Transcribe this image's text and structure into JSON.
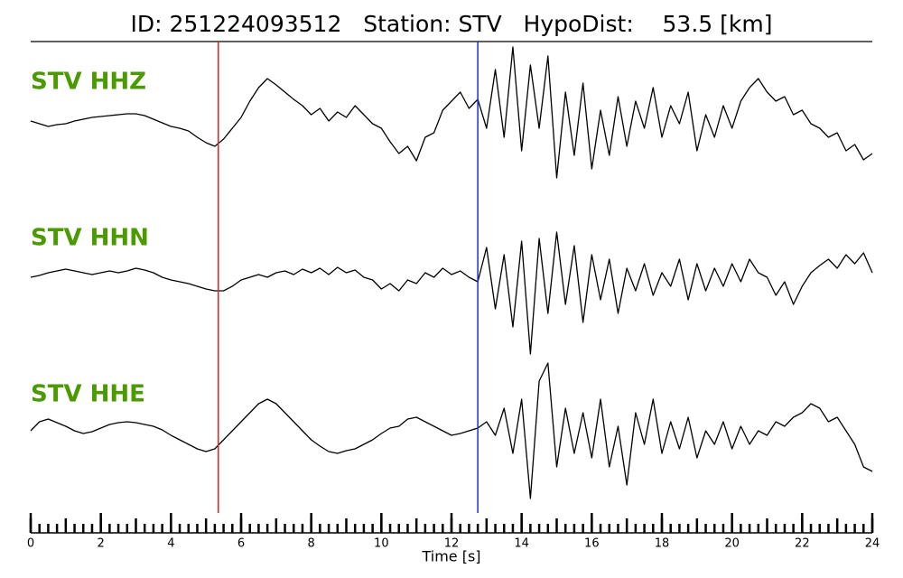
{
  "chart_data": {
    "type": "seismogram",
    "title": "ID: 251224093512   Station: STV   HypoDist:    53.5 [km]",
    "xlabel": "Time [s]",
    "xlim": [
      0,
      24
    ],
    "xticks": [
      0,
      2,
      4,
      6,
      8,
      10,
      12,
      14,
      16,
      18,
      20,
      22,
      24
    ],
    "xminorticks": [
      0,
      0.25,
      0.5,
      0.75,
      1,
      1.25,
      1.5,
      1.75,
      2,
      2.25,
      2.5,
      2.75,
      3,
      3.25,
      3.5,
      3.75,
      4,
      4.25,
      4.5,
      4.75,
      5,
      5.25,
      5.5,
      5.75,
      6,
      6.25,
      6.5,
      6.75,
      7,
      7.25,
      7.5,
      7.75,
      8,
      8.25,
      8.5,
      8.75,
      9,
      9.25,
      9.5,
      9.75,
      10,
      10.25,
      10.5,
      10.75,
      11,
      11.25,
      11.5,
      11.75,
      12,
      12.25,
      12.5,
      12.75,
      13,
      13.25,
      13.5,
      13.75,
      14,
      14.25,
      14.5,
      14.75,
      15,
      15.25,
      15.5,
      15.75,
      16,
      16.25,
      16.5,
      16.75,
      17,
      17.25,
      17.5,
      17.75,
      18,
      18.25,
      18.5,
      18.75,
      19,
      19.25,
      19.5,
      19.75,
      20,
      20.25,
      20.5,
      20.75,
      21,
      21.25,
      21.5,
      21.75,
      22,
      22.25,
      22.5,
      22.75,
      23,
      23.25,
      23.5,
      23.75,
      24
    ],
    "x": [
      0,
      0.25,
      0.5,
      0.75,
      1,
      1.25,
      1.5,
      1.75,
      2,
      2.25,
      2.5,
      2.75,
      3,
      3.25,
      3.5,
      3.75,
      4,
      4.25,
      4.5,
      4.75,
      5,
      5.25,
      5.5,
      5.75,
      6,
      6.25,
      6.5,
      6.75,
      7,
      7.25,
      7.5,
      7.75,
      8,
      8.25,
      8.5,
      8.75,
      9,
      9.25,
      9.5,
      9.75,
      10,
      10.25,
      10.5,
      10.75,
      11,
      11.25,
      11.5,
      11.75,
      12,
      12.25,
      12.5,
      12.75,
      13,
      13.25,
      13.5,
      13.75,
      14,
      14.25,
      14.5,
      14.75,
      15,
      15.25,
      15.5,
      15.75,
      16,
      16.25,
      16.5,
      16.75,
      17,
      17.25,
      17.5,
      17.75,
      18,
      18.25,
      18.5,
      18.75,
      19,
      19.25,
      19.5,
      19.75,
      20,
      20.25,
      20.5,
      20.75,
      21,
      21.25,
      21.5,
      21.75,
      22,
      22.25,
      22.5,
      22.75,
      23,
      23.25,
      23.5,
      23.75,
      24
    ],
    "label_color": "#4a9a00",
    "picks": [
      {
        "x": 5.35,
        "color": "#e8201c"
      },
      {
        "x": 12.75,
        "color": "#1f2fd6"
      }
    ],
    "series": [
      {
        "name": "STV HHZ",
        "color": "#000000",
        "values": [
          -2,
          -5,
          -8,
          -6,
          -5,
          -2,
          0,
          2,
          3,
          4,
          5,
          6,
          6,
          4,
          0,
          -4,
          -8,
          -10,
          -13,
          -20,
          -26,
          -30,
          -22,
          -10,
          2,
          20,
          35,
          45,
          38,
          30,
          22,
          15,
          5,
          12,
          -2,
          8,
          2,
          15,
          5,
          -5,
          -10,
          -25,
          -38,
          -30,
          -46,
          -20,
          -15,
          10,
          20,
          30,
          12,
          22,
          -10,
          55,
          -20,
          80,
          -35,
          60,
          -10,
          70,
          -65,
          30,
          -40,
          40,
          -55,
          10,
          -40,
          25,
          -30,
          20,
          -10,
          35,
          -20,
          15,
          -5,
          30,
          -35,
          5,
          -20,
          15,
          -10,
          20,
          35,
          45,
          30,
          20,
          25,
          5,
          10,
          -5,
          -10,
          -20,
          -15,
          -35,
          -28,
          -45,
          -38
        ]
      },
      {
        "name": "STV HHN",
        "color": "#000000",
        "values": [
          -5,
          -3,
          0,
          2,
          4,
          2,
          0,
          -2,
          0,
          2,
          0,
          2,
          5,
          3,
          0,
          -5,
          -8,
          -10,
          -12,
          -15,
          -18,
          -20,
          -20,
          -15,
          -8,
          -5,
          -2,
          -5,
          0,
          2,
          -2,
          4,
          0,
          5,
          -2,
          6,
          0,
          3,
          -5,
          -8,
          -18,
          -12,
          -20,
          -8,
          -12,
          0,
          -5,
          5,
          -2,
          2,
          -5,
          -10,
          28,
          -40,
          20,
          -60,
          35,
          -90,
          38,
          -45,
          45,
          -35,
          30,
          -55,
          20,
          -30,
          15,
          -45,
          5,
          -20,
          10,
          -25,
          0,
          -15,
          15,
          -30,
          10,
          -20,
          5,
          -15,
          10,
          -10,
          15,
          0,
          -5,
          -25,
          -10,
          -35,
          -15,
          0,
          8,
          15,
          5,
          20,
          10,
          22,
          0
        ]
      },
      {
        "name": "STV HHE",
        "color": "#000000",
        "values": [
          -5,
          5,
          8,
          4,
          0,
          -5,
          -8,
          -6,
          -2,
          2,
          4,
          5,
          4,
          2,
          0,
          -4,
          -10,
          -15,
          -20,
          -25,
          -28,
          -25,
          -15,
          -5,
          5,
          15,
          25,
          30,
          25,
          15,
          5,
          -5,
          -15,
          -22,
          -28,
          -30,
          -27,
          -25,
          -20,
          -15,
          -8,
          -2,
          0,
          8,
          10,
          5,
          0,
          -5,
          -10,
          -8,
          -5,
          -2,
          5,
          -10,
          20,
          -30,
          30,
          -80,
          50,
          70,
          -45,
          20,
          -30,
          15,
          -35,
          30,
          -45,
          0,
          -65,
          15,
          -20,
          30,
          -30,
          5,
          -25,
          10,
          -35,
          -5,
          -20,
          5,
          -25,
          0,
          -20,
          -5,
          -10,
          5,
          0,
          10,
          15,
          25,
          20,
          5,
          10,
          -5,
          -20,
          -45,
          -50
        ]
      }
    ]
  }
}
